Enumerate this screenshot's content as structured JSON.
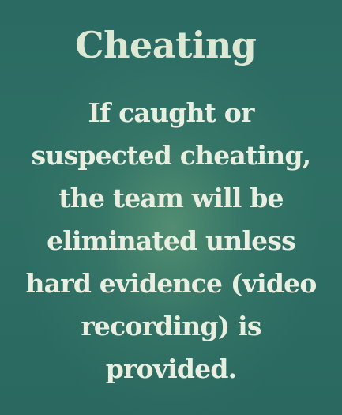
{
  "heading": "Cheating",
  "rule_text": "If caught or suspected cheating, the team will be eliminated unless hard evidence (video recording) is provided."
}
